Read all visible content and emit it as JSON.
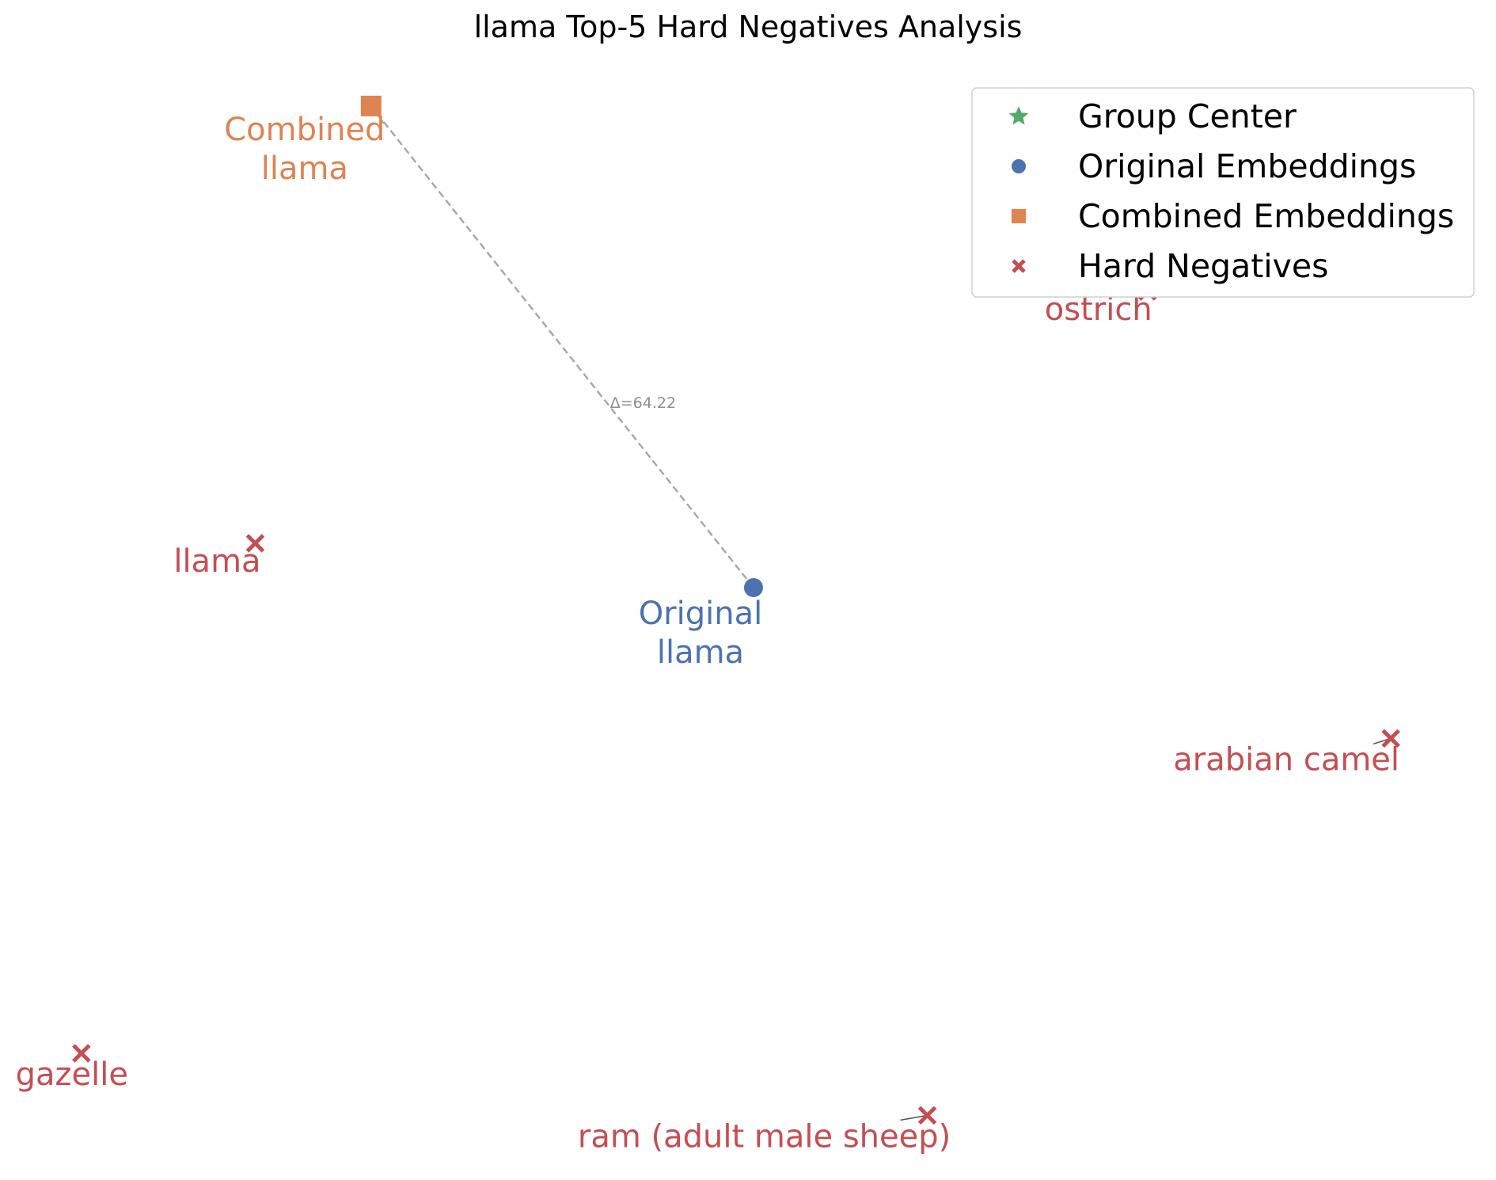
{
  "chart_data": {
    "type": "scatter",
    "title": "llama Top-5 Hard Negatives Analysis",
    "xlabel": "",
    "ylabel": "",
    "axes_visible": false,
    "grid": false,
    "legend_position": "top-right",
    "legend": [
      {
        "label": "Group Center",
        "marker": "star",
        "color": "#55a868"
      },
      {
        "label": "Original Embeddings",
        "marker": "circle",
        "color": "#4c72b0"
      },
      {
        "label": "Combined Embeddings",
        "marker": "square",
        "color": "#dd8452"
      },
      {
        "label": "Hard Negatives",
        "marker": "x",
        "color": "#c44e52"
      }
    ],
    "colors": {
      "original": "#4c72b0",
      "combined": "#dd8452",
      "hard_negative": "#c44e52",
      "group_center": "#55a868",
      "connector": "#a6a6a6"
    },
    "points": {
      "original": {
        "label_lines": [
          "Original",
          "llama"
        ],
        "x": 11.0,
        "y": 0.0
      },
      "combined": {
        "label_lines": [
          "Combined",
          "llama"
        ],
        "x": -22.0,
        "y": 54.3
      },
      "hard_negatives": [
        {
          "label": "ostrich",
          "x": 45.0,
          "y": 33.4
        },
        {
          "label": "llama",
          "x": -32.0,
          "y": 5.0
        },
        {
          "label": "arabian camel",
          "x": 66.0,
          "y": -17.0
        },
        {
          "label": "gazelle",
          "x": -47.0,
          "y": -52.5
        },
        {
          "label": "ram (adult male sheep)",
          "x": 26.0,
          "y": -59.5
        }
      ]
    },
    "shift_annotation": "Δ=64.22",
    "xlim": [
      -53.0,
      72.0
    ],
    "ylim": [
      -65.0,
      60.0
    ]
  }
}
